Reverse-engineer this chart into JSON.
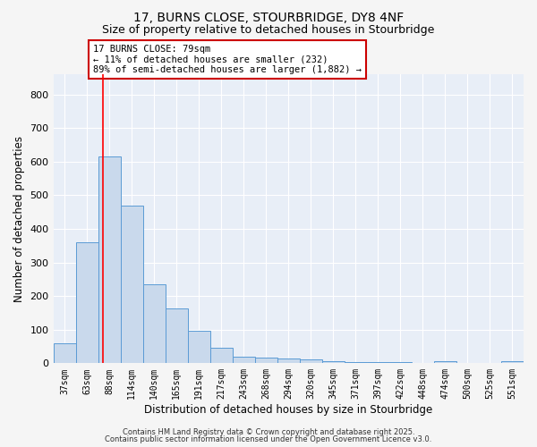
{
  "title_line1": "17, BURNS CLOSE, STOURBRIDGE, DY8 4NF",
  "title_line2": "Size of property relative to detached houses in Stourbridge",
  "xlabel": "Distribution of detached houses by size in Stourbridge",
  "ylabel": "Number of detached properties",
  "categories": [
    "37sqm",
    "63sqm",
    "88sqm",
    "114sqm",
    "140sqm",
    "165sqm",
    "191sqm",
    "217sqm",
    "243sqm",
    "268sqm",
    "294sqm",
    "320sqm",
    "345sqm",
    "371sqm",
    "397sqm",
    "422sqm",
    "448sqm",
    "474sqm",
    "500sqm",
    "525sqm",
    "551sqm"
  ],
  "values": [
    60,
    360,
    615,
    470,
    235,
    162,
    97,
    47,
    20,
    18,
    15,
    12,
    5,
    4,
    3,
    3,
    2,
    6,
    2,
    2,
    5
  ],
  "bar_color": "#c9d9ec",
  "bar_edge_color": "#5b9bd5",
  "red_line_x": 1.72,
  "annotation_text": "17 BURNS CLOSE: 79sqm\n← 11% of detached houses are smaller (232)\n89% of semi-detached houses are larger (1,882) →",
  "annotation_box_facecolor": "#ffffff",
  "annotation_box_edgecolor": "#cc0000",
  "ylim": [
    0,
    860
  ],
  "yticks": [
    0,
    100,
    200,
    300,
    400,
    500,
    600,
    700,
    800
  ],
  "plot_bg_color": "#e8eef7",
  "fig_bg_color": "#f5f5f5",
  "grid_color": "#ffffff",
  "footer_line1": "Contains HM Land Registry data © Crown copyright and database right 2025.",
  "footer_line2": "Contains public sector information licensed under the Open Government Licence v3.0."
}
